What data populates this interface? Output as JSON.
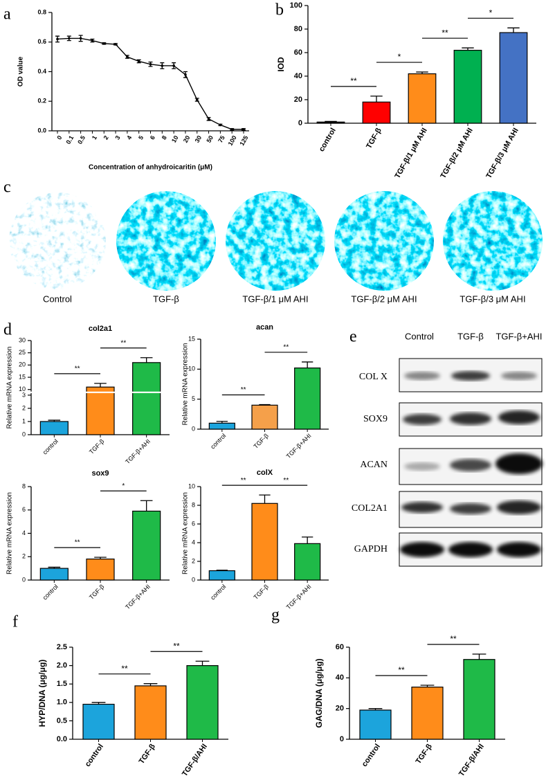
{
  "panel_labels": [
    "a",
    "b",
    "c",
    "d",
    "e",
    "f",
    "g"
  ],
  "chart_data": [
    {
      "type": "line",
      "categories": [
        "0",
        "0.1",
        "0.5",
        "1",
        "2",
        "3",
        "4",
        "5",
        "6",
        "8",
        "10",
        "20",
        "30",
        "50",
        "75",
        "100",
        "125"
      ],
      "values": [
        0.62,
        0.625,
        0.625,
        0.61,
        0.59,
        0.585,
        0.5,
        0.47,
        0.45,
        0.44,
        0.44,
        0.38,
        0.21,
        0.08,
        0.04,
        0.01,
        0.01
      ],
      "errors": [
        0.02,
        0.015,
        0.02,
        0.01,
        0.005,
        0.005,
        0.01,
        0.01,
        0.015,
        0.02,
        0.02,
        0.02,
        0.01,
        0.01,
        0.005,
        0.005,
        0.005
      ],
      "color": "#000000",
      "ylim": [
        0,
        0.8
      ],
      "yticks": [
        {
          "value": 0,
          "label": "0.0"
        },
        0.2,
        0.4,
        0.6,
        0.8
      ],
      "x_label": "Concentration of  anhydroicaritin (μM)",
      "y_label": "OD value"
    },
    {
      "type": "bar",
      "categories": [
        "control",
        "TGF-β",
        "TGF-β/1 μM AHI",
        "TGF-β/2 μM AHI",
        "TGF-β/3 μM AHI"
      ],
      "values": [
        1,
        18,
        42,
        62,
        77
      ],
      "errors": [
        0.5,
        5,
        1.5,
        2,
        4
      ],
      "colors": [
        "#000000",
        "#ff0000",
        "#ff8c1a",
        "#00b050",
        "#4472c4"
      ],
      "ylim": [
        0,
        100
      ],
      "yticks": [
        0,
        20,
        40,
        60,
        80,
        100
      ],
      "y_label": "IOD",
      "annotations": [
        {
          "text": "**",
          "from": 0,
          "to": 1
        },
        {
          "text": "*",
          "from": 1,
          "to": 2
        },
        {
          "text": "**",
          "from": 2,
          "to": 3
        },
        {
          "text": "*",
          "from": 3,
          "to": 4
        }
      ]
    },
    {
      "type": "bar",
      "title": "col2a1",
      "categories": [
        "control",
        "TGF-β",
        "TGF-β+AHI"
      ],
      "values": [
        1,
        11,
        21
      ],
      "errors": [
        0.1,
        1.5,
        2
      ],
      "colors": [
        "#1ca4dc",
        "#ff8c1a",
        "#1fba48"
      ],
      "ylim": [
        0,
        30
      ],
      "axis_break": [
        3,
        10
      ],
      "yticks": [
        0,
        1,
        2,
        3,
        10,
        15,
        20,
        25,
        30
      ],
      "y_label": "Relative mRNA expression",
      "annotations": [
        {
          "text": "**",
          "from": 0,
          "to": 1
        },
        {
          "text": "**",
          "from": 1,
          "to": 2
        }
      ]
    },
    {
      "type": "bar",
      "title": "acan",
      "categories": [
        "control",
        "TGF-β",
        "TGF-β+AHI"
      ],
      "values": [
        1,
        4,
        10.2
      ],
      "errors": [
        0.3,
        0.1,
        1
      ],
      "colors": [
        "#1ca4dc",
        "#f5a04a",
        "#1fba48"
      ],
      "ylim": [
        0,
        15
      ],
      "yticks": [
        0,
        5,
        10,
        15
      ],
      "y_label": "Relative mRNA expression",
      "annotations": [
        {
          "text": "**",
          "from": 0,
          "to": 1
        },
        {
          "text": "**",
          "from": 1,
          "to": 2
        }
      ]
    },
    {
      "type": "bar",
      "title": "sox9",
      "categories": [
        "control",
        "TGF-β",
        "TGF-β+AHI"
      ],
      "values": [
        1,
        1.8,
        5.9
      ],
      "errors": [
        0.1,
        0.15,
        0.9
      ],
      "colors": [
        "#1ca4dc",
        "#ff8c1a",
        "#1fba48"
      ],
      "ylim": [
        0,
        8
      ],
      "yticks": [
        0,
        2,
        4,
        6,
        8
      ],
      "y_label": "Relative mRNA expression",
      "annotations": [
        {
          "text": "**",
          "from": 0,
          "to": 1
        },
        {
          "text": "*",
          "from": 1,
          "to": 2
        }
      ]
    },
    {
      "type": "bar",
      "title": "colX",
      "categories": [
        "control",
        "TGF-β",
        "TGF-β+AHI"
      ],
      "values": [
        1,
        8.2,
        3.9
      ],
      "errors": [
        0.05,
        0.9,
        0.7
      ],
      "colors": [
        "#1ca4dc",
        "#ff8c1a",
        "#1fba48"
      ],
      "ylim": [
        0,
        10
      ],
      "yticks": [
        0,
        2,
        4,
        6,
        8,
        10
      ],
      "y_label": "Relative mRNA expression",
      "annotations": [
        {
          "text": "**",
          "from": 0,
          "to": 1
        },
        {
          "text": "**",
          "from": 1,
          "to": 2
        }
      ]
    },
    {
      "type": "bar",
      "categories": [
        "control",
        "TGF-β",
        "TGF-β/AHI"
      ],
      "values": [
        0.95,
        1.45,
        2.0
      ],
      "errors": [
        0.05,
        0.06,
        0.12
      ],
      "colors": [
        "#1ca4dc",
        "#ff8c1a",
        "#1fba48"
      ],
      "ylim": [
        0,
        2.5
      ],
      "yticks": [
        {
          "value": 0,
          "label": "0.0"
        },
        0.5,
        {
          "value": 1,
          "label": "1.0"
        },
        1.5,
        {
          "value": 2,
          "label": "2.0"
        },
        2.5
      ],
      "y_label": "HYP/DNA (μg/μg)",
      "annotations": [
        {
          "text": "**",
          "from": 0,
          "to": 1
        },
        {
          "text": "**",
          "from": 1,
          "to": 2
        }
      ]
    },
    {
      "type": "bar",
      "categories": [
        "control",
        "TGF-β",
        "TGF-β/AHI"
      ],
      "values": [
        19,
        34,
        52
      ],
      "errors": [
        1,
        1.2,
        3.5
      ],
      "colors": [
        "#1ca4dc",
        "#ff8c1a",
        "#1fba48"
      ],
      "ylim": [
        0,
        60
      ],
      "yticks": [
        0,
        20,
        40,
        60
      ],
      "y_label": "GAG/DNA (μg/μg)",
      "annotations": [
        {
          "text": "**",
          "from": 0,
          "to": 1
        },
        {
          "text": "**",
          "from": 1,
          "to": 2
        }
      ]
    }
  ],
  "stain_images": {
    "labels": [
      "Control",
      "TGF-β",
      "TGF-β/1 μM AHI",
      "TGF-β/2 μM AHI",
      "TGF-β/3 μM AHI"
    ]
  },
  "western_blot": {
    "columns": [
      "Control",
      "TGF-β",
      "TGF-β+AHI"
    ],
    "rows": [
      "COL X",
      "SOX9",
      "ACAN",
      "COL2A1",
      "GAPDH"
    ]
  }
}
